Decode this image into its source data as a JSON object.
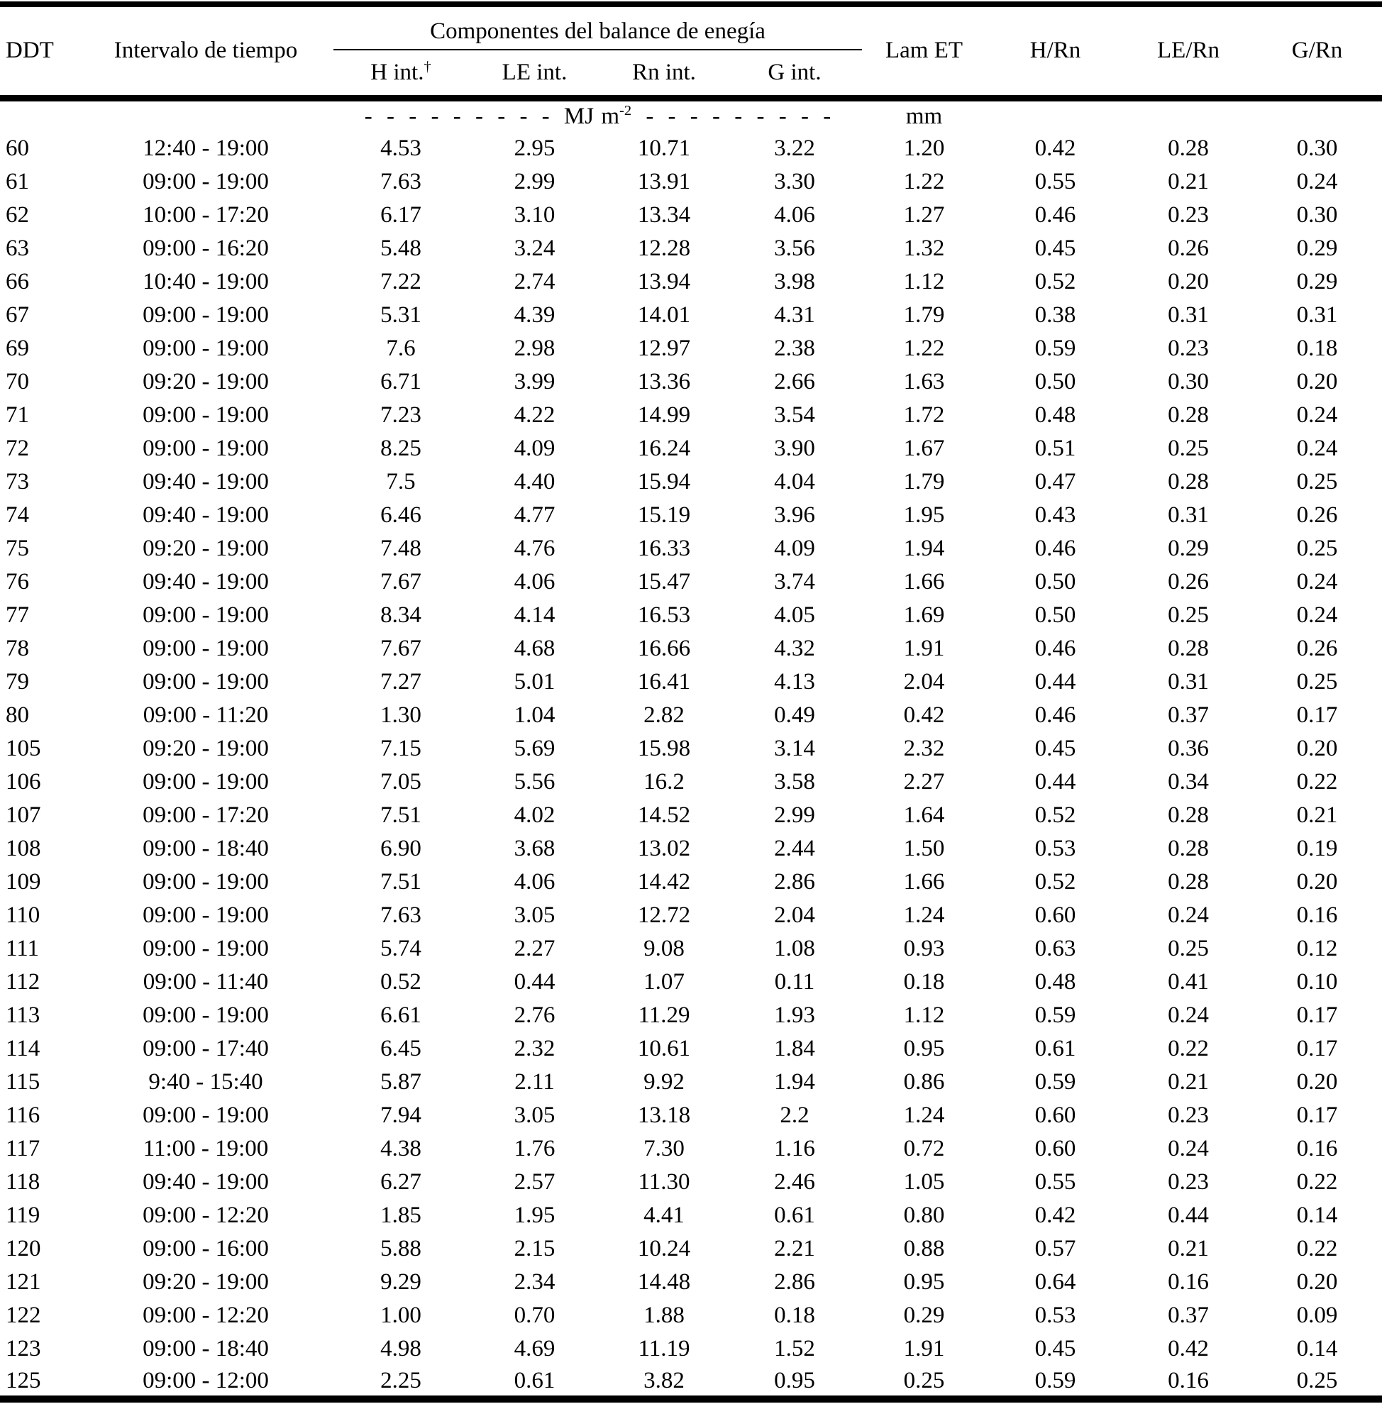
{
  "colors": {
    "text": "#000000",
    "background": "#ffffff",
    "rule": "#000000"
  },
  "table": {
    "group_header": "Componentes del balance de enegía",
    "columns": {
      "ddt": "DDT",
      "interval": "Intervalo de tiempo",
      "h_int": "H int.",
      "h_int_sup": "†",
      "le_int": "LE int.",
      "rn_int": "Rn int.",
      "g_int": "G int.",
      "lam_et": "Lam ET",
      "h_rn": "H/Rn",
      "le_rn": "LE/Rn",
      "g_rn": "G/Rn"
    },
    "units": {
      "dashes": "- - - - - - - - -",
      "mj": "MJ m",
      "mj_sup": "-2",
      "mm": "mm"
    },
    "column_keys": [
      "ddt",
      "interval",
      "h-int",
      "le-int",
      "rn-int",
      "g-int",
      "lam-et",
      "h-rn",
      "le-rn",
      "g-rn"
    ],
    "rows": [
      [
        "60",
        "12:40 - 19:00",
        "4.53",
        "2.95",
        "10.71",
        "3.22",
        "1.20",
        "0.42",
        "0.28",
        "0.30"
      ],
      [
        "61",
        "09:00 - 19:00",
        "7.63",
        "2.99",
        "13.91",
        "3.30",
        "1.22",
        "0.55",
        "0.21",
        "0.24"
      ],
      [
        "62",
        "10:00 - 17:20",
        "6.17",
        "3.10",
        "13.34",
        "4.06",
        "1.27",
        "0.46",
        "0.23",
        "0.30"
      ],
      [
        "63",
        "09:00 - 16:20",
        "5.48",
        "3.24",
        "12.28",
        "3.56",
        "1.32",
        "0.45",
        "0.26",
        "0.29"
      ],
      [
        "66",
        "10:40 - 19:00",
        "7.22",
        "2.74",
        "13.94",
        "3.98",
        "1.12",
        "0.52",
        "0.20",
        "0.29"
      ],
      [
        "67",
        "09:00 - 19:00",
        "5.31",
        "4.39",
        "14.01",
        "4.31",
        "1.79",
        "0.38",
        "0.31",
        "0.31"
      ],
      [
        "69",
        "09:00 - 19:00",
        "7.6",
        "2.98",
        "12.97",
        "2.38",
        "1.22",
        "0.59",
        "0.23",
        "0.18"
      ],
      [
        "70",
        "09:20 - 19:00",
        "6.71",
        "3.99",
        "13.36",
        "2.66",
        "1.63",
        "0.50",
        "0.30",
        "0.20"
      ],
      [
        "71",
        "09:00 - 19:00",
        "7.23",
        "4.22",
        "14.99",
        "3.54",
        "1.72",
        "0.48",
        "0.28",
        "0.24"
      ],
      [
        "72",
        "09:00 - 19:00",
        "8.25",
        "4.09",
        "16.24",
        "3.90",
        "1.67",
        "0.51",
        "0.25",
        "0.24"
      ],
      [
        "73",
        "09:40 - 19:00",
        "7.5",
        "4.40",
        "15.94",
        "4.04",
        "1.79",
        "0.47",
        "0.28",
        "0.25"
      ],
      [
        "74",
        "09:40 - 19:00",
        "6.46",
        "4.77",
        "15.19",
        "3.96",
        "1.95",
        "0.43",
        "0.31",
        "0.26"
      ],
      [
        "75",
        "09:20 - 19:00",
        "7.48",
        "4.76",
        "16.33",
        "4.09",
        "1.94",
        "0.46",
        "0.29",
        "0.25"
      ],
      [
        "76",
        "09:40 - 19:00",
        "7.67",
        "4.06",
        "15.47",
        "3.74",
        "1.66",
        "0.50",
        "0.26",
        "0.24"
      ],
      [
        "77",
        "09:00 - 19:00",
        "8.34",
        "4.14",
        "16.53",
        "4.05",
        "1.69",
        "0.50",
        "0.25",
        "0.24"
      ],
      [
        "78",
        "09:00 - 19:00",
        "7.67",
        "4.68",
        "16.66",
        "4.32",
        "1.91",
        "0.46",
        "0.28",
        "0.26"
      ],
      [
        "79",
        "09:00 - 19:00",
        "7.27",
        "5.01",
        "16.41",
        "4.13",
        "2.04",
        "0.44",
        "0.31",
        "0.25"
      ],
      [
        "80",
        "09:00 - 11:20",
        "1.30",
        "1.04",
        "2.82",
        "0.49",
        "0.42",
        "0.46",
        "0.37",
        "0.17"
      ],
      [
        "105",
        "09:20 - 19:00",
        "7.15",
        "5.69",
        "15.98",
        "3.14",
        "2.32",
        "0.45",
        "0.36",
        "0.20"
      ],
      [
        "106",
        "09:00 - 19:00",
        "7.05",
        "5.56",
        "16.2",
        "3.58",
        "2.27",
        "0.44",
        "0.34",
        "0.22"
      ],
      [
        "107",
        "09:00 - 17:20",
        "7.51",
        "4.02",
        "14.52",
        "2.99",
        "1.64",
        "0.52",
        "0.28",
        "0.21"
      ],
      [
        "108",
        "09:00 - 18:40",
        "6.90",
        "3.68",
        "13.02",
        "2.44",
        "1.50",
        "0.53",
        "0.28",
        "0.19"
      ],
      [
        "109",
        "09:00 - 19:00",
        "7.51",
        "4.06",
        "14.42",
        "2.86",
        "1.66",
        "0.52",
        "0.28",
        "0.20"
      ],
      [
        "110",
        "09:00 - 19:00",
        "7.63",
        "3.05",
        "12.72",
        "2.04",
        "1.24",
        "0.60",
        "0.24",
        "0.16"
      ],
      [
        "111",
        "09:00 - 19:00",
        "5.74",
        "2.27",
        "9.08",
        "1.08",
        "0.93",
        "0.63",
        "0.25",
        "0.12"
      ],
      [
        "112",
        "09:00 - 11:40",
        "0.52",
        "0.44",
        "1.07",
        "0.11",
        "0.18",
        "0.48",
        "0.41",
        "0.10"
      ],
      [
        "113",
        "09:00 - 19:00",
        "6.61",
        "2.76",
        "11.29",
        "1.93",
        "1.12",
        "0.59",
        "0.24",
        "0.17"
      ],
      [
        "114",
        "09:00 - 17:40",
        "6.45",
        "2.32",
        "10.61",
        "1.84",
        "0.95",
        "0.61",
        "0.22",
        "0.17"
      ],
      [
        "115",
        "9:40 - 15:40",
        "5.87",
        "2.11",
        "9.92",
        "1.94",
        "0.86",
        "0.59",
        "0.21",
        "0.20"
      ],
      [
        "116",
        "09:00 - 19:00",
        "7.94",
        "3.05",
        "13.18",
        "2.2",
        "1.24",
        "0.60",
        "0.23",
        "0.17"
      ],
      [
        "117",
        "11:00 - 19:00",
        "4.38",
        "1.76",
        "7.30",
        "1.16",
        "0.72",
        "0.60",
        "0.24",
        "0.16"
      ],
      [
        "118",
        "09:40 - 19:00",
        "6.27",
        "2.57",
        "11.30",
        "2.46",
        "1.05",
        "0.55",
        "0.23",
        "0.22"
      ],
      [
        "119",
        "09:00 - 12:20",
        "1.85",
        "1.95",
        "4.41",
        "0.61",
        "0.80",
        "0.42",
        "0.44",
        "0.14"
      ],
      [
        "120",
        "09:00 - 16:00",
        "5.88",
        "2.15",
        "10.24",
        "2.21",
        "0.88",
        "0.57",
        "0.21",
        "0.22"
      ],
      [
        "121",
        "09:20 - 19:00",
        "9.29",
        "2.34",
        "14.48",
        "2.86",
        "0.95",
        "0.64",
        "0.16",
        "0.20"
      ],
      [
        "122",
        "09:00 - 12:20",
        "1.00",
        "0.70",
        "1.88",
        "0.18",
        "0.29",
        "0.53",
        "0.37",
        "0.09"
      ],
      [
        "123",
        "09:00 - 18:40",
        "4.98",
        "4.69",
        "11.19",
        "1.52",
        "1.91",
        "0.45",
        "0.42",
        "0.14"
      ],
      [
        "125",
        "09:00 - 12:00",
        "2.25",
        "0.61",
        "3.82",
        "0.95",
        "0.25",
        "0.59",
        "0.16",
        "0.25"
      ]
    ]
  }
}
